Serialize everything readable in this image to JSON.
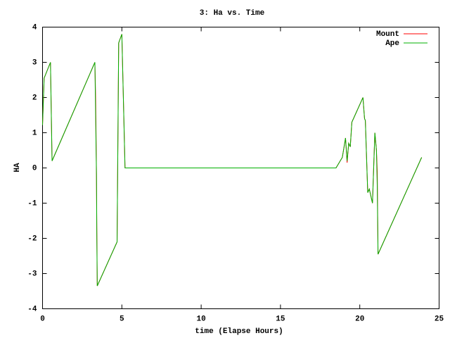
{
  "chart_data": {
    "type": "line",
    "title": "3: Ha vs. Time",
    "xlabel": "time (Elapse Hours)",
    "ylabel": "HA",
    "x": [
      0,
      0.1,
      0.5,
      0.6,
      3.3,
      3.35,
      3.4,
      3.42,
      3.45,
      4.7,
      4.8,
      5.0,
      5.2,
      18.5,
      18.9,
      19.1,
      19.2,
      19.3,
      19.4,
      19.5,
      20.2,
      20.3,
      20.35,
      20.5,
      20.6,
      20.8,
      20.95,
      21.05,
      21.1,
      21.15,
      23.9
    ],
    "series": [
      {
        "name": "Mount",
        "color": "#ff0000",
        "values": [
          1.22,
          2.55,
          3.0,
          0.2,
          3.0,
          1.9,
          -0.2,
          -1.7,
          -3.35,
          -2.1,
          3.55,
          3.8,
          0,
          0,
          0.3,
          0.85,
          0.15,
          0.7,
          0.6,
          1.3,
          2.0,
          1.4,
          1.35,
          -0.7,
          -0.6,
          -1.0,
          1.0,
          0.5,
          -0.1,
          -2.45,
          0.3
        ]
      },
      {
        "name": "Ape",
        "color": "#00b000",
        "values": [
          1.22,
          2.55,
          3.0,
          0.2,
          3.0,
          1.4,
          -0.2,
          -1.8,
          -3.35,
          -2.1,
          3.55,
          3.8,
          0,
          0,
          0.3,
          0.85,
          0.2,
          0.7,
          0.6,
          1.3,
          2.0,
          1.4,
          1.35,
          -0.7,
          -0.6,
          -1.0,
          1.0,
          0.5,
          -0.5,
          -2.45,
          0.3
        ]
      }
    ],
    "xlim": [
      0,
      25
    ],
    "xticks": [
      0,
      5,
      10,
      15,
      20,
      25
    ],
    "ylim": [
      -4,
      4
    ],
    "yticks": [
      -4,
      -3,
      -2,
      -1,
      0,
      1,
      2,
      3,
      4
    ],
    "grid": false,
    "legend": "top-right"
  }
}
